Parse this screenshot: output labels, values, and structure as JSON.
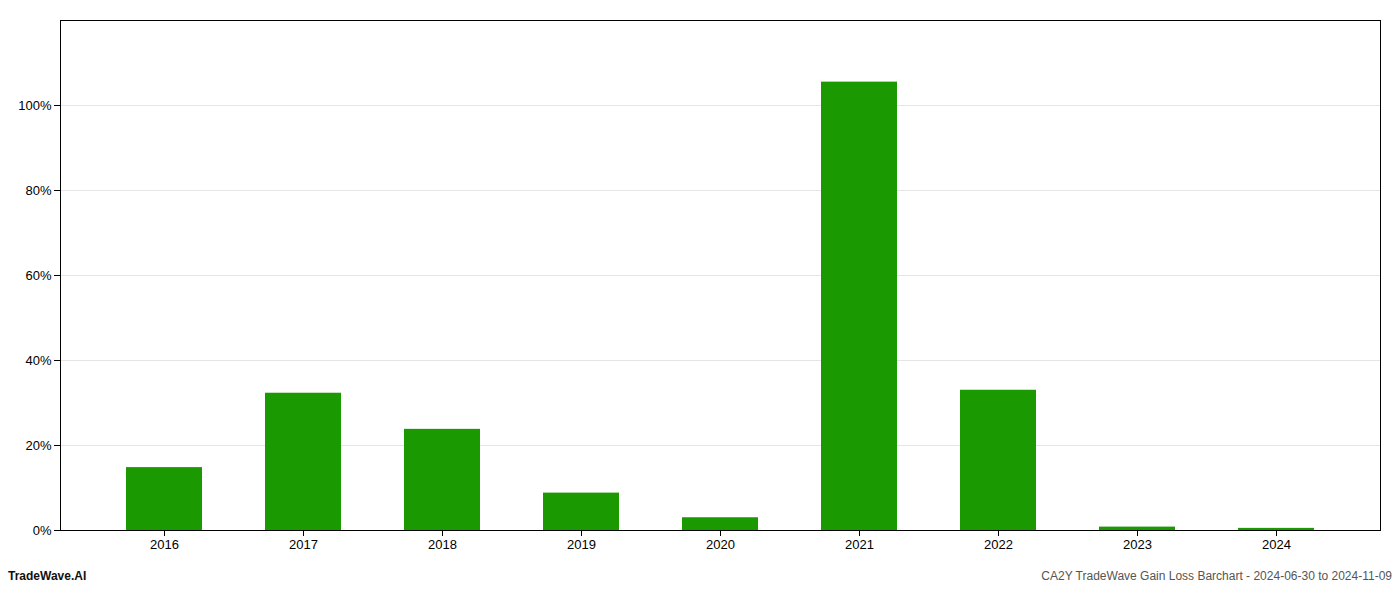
{
  "chart_data": {
    "type": "bar",
    "categories": [
      "2016",
      "2017",
      "2018",
      "2019",
      "2020",
      "2021",
      "2022",
      "2023",
      "2024"
    ],
    "values": [
      0.148,
      0.323,
      0.238,
      0.088,
      0.03,
      1.055,
      0.33,
      0.008,
      0.005
    ],
    "color": "#1a9a00",
    "ylim": [
      0.0,
      1.2
    ],
    "yticks": [
      {
        "value": 0.0,
        "label": "0%"
      },
      {
        "value": 0.2,
        "label": "20%"
      },
      {
        "value": 0.4,
        "label": "40%"
      },
      {
        "value": 0.6,
        "label": "60%"
      },
      {
        "value": 0.8,
        "label": "80%"
      },
      {
        "value": 1.0,
        "label": "100%"
      }
    ],
    "grid": true,
    "annotations": [
      "TradeWave.AI",
      "CA2Y TradeWave Gain Loss Barchart - 2024-06-30 to 2024-11-09"
    ]
  }
}
